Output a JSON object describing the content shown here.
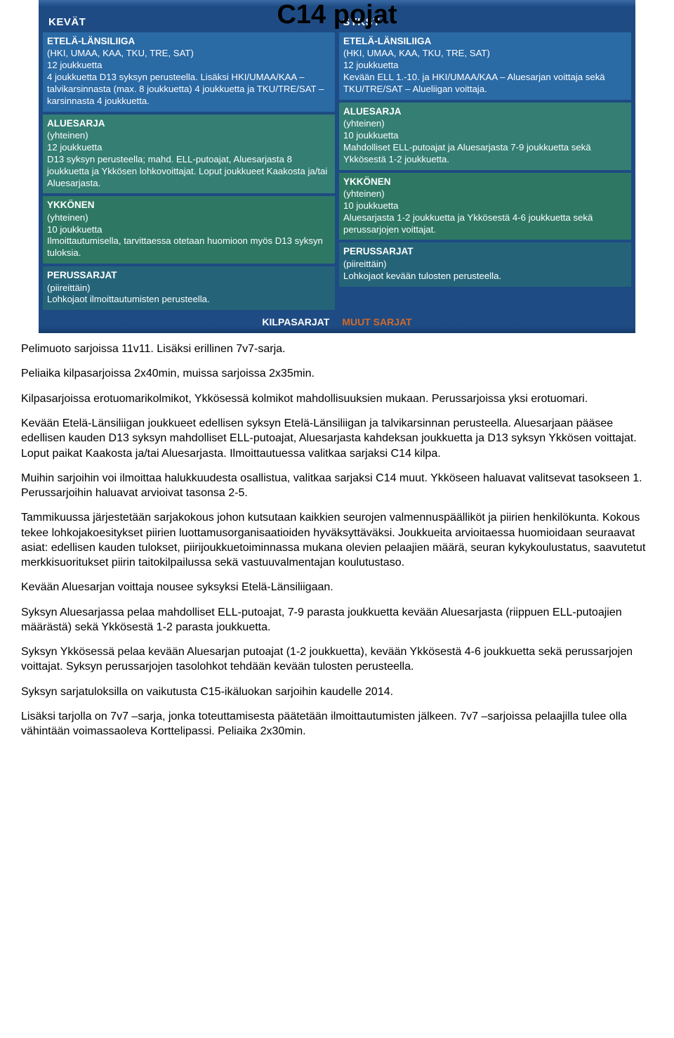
{
  "panel": {
    "title": "C14 pojat",
    "kevat": {
      "header": "KEVÄT",
      "ell": {
        "title": "ETELÄ-LÄNSILIIGA",
        "body": "(HKI, UMAA, KAA, TKU, TRE, SAT)\n12 joukkuetta\n4 joukkuetta D13 syksyn perusteella. Lisäksi HKI/UMAA/KAA –talvikarsinnasta (max. 8 joukkuetta) 4 joukkuetta ja TKU/TRE/SAT –karsinnasta 4 joukkuetta."
      },
      "alue": {
        "title": "ALUESARJA",
        "body": "(yhteinen)\n12 joukkuetta\nD13 syksyn perusteella; mahd. ELL-putoajat, Aluesarjasta 8 joukkuetta ja Ykkösen lohkovoittajat. Loput joukkueet Kaakosta ja/tai Aluesarjasta."
      },
      "ykk": {
        "title": "YKKÖNEN",
        "body": "(yhteinen)\n10 joukkuetta\nIlmoittautumisella, tarvittaessa otetaan huomioon myös D13 syksyn tuloksia."
      },
      "perus": {
        "title": "PERUSSARJAT",
        "body": "(piireittäin)\nLohkojaot ilmoittautumisten perusteella."
      }
    },
    "syksy": {
      "header": "SYKSY",
      "ell": {
        "title": "ETELÄ-LÄNSILIIGA",
        "body": "(HKI, UMAA, KAA, TKU, TRE, SAT)\n12 joukkuetta\nKevään ELL 1.-10. ja HKI/UMAA/KAA – Aluesarjan voittaja sekä TKU/TRE/SAT – Alueliigan voittaja."
      },
      "alue": {
        "title": "ALUESARJA",
        "body": "(yhteinen)\n10 joukkuetta\nMahdolliset ELL-putoajat ja Aluesarjasta 7-9 joukkuetta sekä Ykkösestä 1-2 joukkuetta."
      },
      "ykk": {
        "title": "YKKÖNEN",
        "body": "(yhteinen)\n10 joukkuetta\nAluesarjasta 1-2 joukkuetta ja Ykkösestä 4-6 joukkuetta sekä perussarjojen voittajat."
      },
      "perus": {
        "title": "PERUSSARJAT",
        "body": "(piireittäin)\nLohkojaot kevään tulosten perusteella."
      }
    },
    "footer": {
      "kilpa": "KILPASARJAT",
      "muut": "MUUT SARJAT"
    }
  },
  "paragraphs": [
    "Pelimuoto sarjoissa 11v11. Lisäksi erillinen 7v7-sarja.",
    "Peliaika kilpasarjoissa 2x40min, muissa sarjoissa 2x35min.",
    "Kilpasarjoissa erotuomarikolmikot, Ykkösessä kolmikot mahdollisuuksien mukaan. Perussarjoissa yksi erotuomari.",
    "Kevään Etelä-Länsiliigan joukkueet edellisen syksyn Etelä-Länsiliigan ja talvikarsinnan perusteella. Aluesarjaan pääsee edellisen kauden D13 syksyn mahdolliset ELL-putoajat, Aluesarjasta kahdeksan joukkuetta ja D13 syksyn Ykkösen voittajat. Loput paikat Kaakosta ja/tai Aluesarjasta. Ilmoittautuessa valitkaa sarjaksi C14 kilpa.",
    "Muihin sarjoihin voi ilmoittaa halukkuudesta osallistua, valitkaa sarjaksi C14 muut. Ykköseen haluavat valitsevat tasokseen 1. Perussarjoihin haluavat arvioivat tasonsa 2-5.",
    "Tammikuussa järjestetään sarjakokous johon kutsutaan kaikkien seurojen valmennuspäälliköt ja piirien henkilökunta. Kokous tekee lohkojakoesitykset piirien luottamusorganisaatioiden hyväksyttäväksi. Joukkueita arvioitaessa huomioidaan seuraavat asiat: edellisen kauden tulokset, piirijoukkuetoiminnassa mukana olevien pelaajien määrä, seuran kykykoulustatus, saavutetut merkkisuoritukset piirin taitokilpailussa sekä vastuuvalmentajan koulutustaso.",
    "Kevään Aluesarjan voittaja nousee syksyksi Etelä-Länsiliigaan.",
    "Syksyn Aluesarjassa pelaa mahdolliset ELL-putoajat, 7-9 parasta joukkuetta kevään Aluesarjasta (riippuen ELL-putoajien määrästä) sekä Ykkösestä 1-2 parasta joukkuetta.",
    "Syksyn Ykkösessä pelaa kevään Aluesarjan putoajat (1-2 joukkuetta), kevään Ykkösestä 4-6 joukkuetta sekä perussarjojen voittajat. Syksyn perussarjojen tasolohkot tehdään kevään tulosten perusteella.",
    "Syksyn sarjatuloksilla on vaikutusta C15-ikäluokan sarjoihin kaudelle 2014.",
    "Lisäksi tarjolla on 7v7 –sarja, jonka toteuttamisesta päätetään ilmoittautumisten jälkeen. 7v7 –sarjoissa pelaajilla tulee olla vähintään voimassaoleva Korttelipassi. Peliaika 2x30min."
  ]
}
